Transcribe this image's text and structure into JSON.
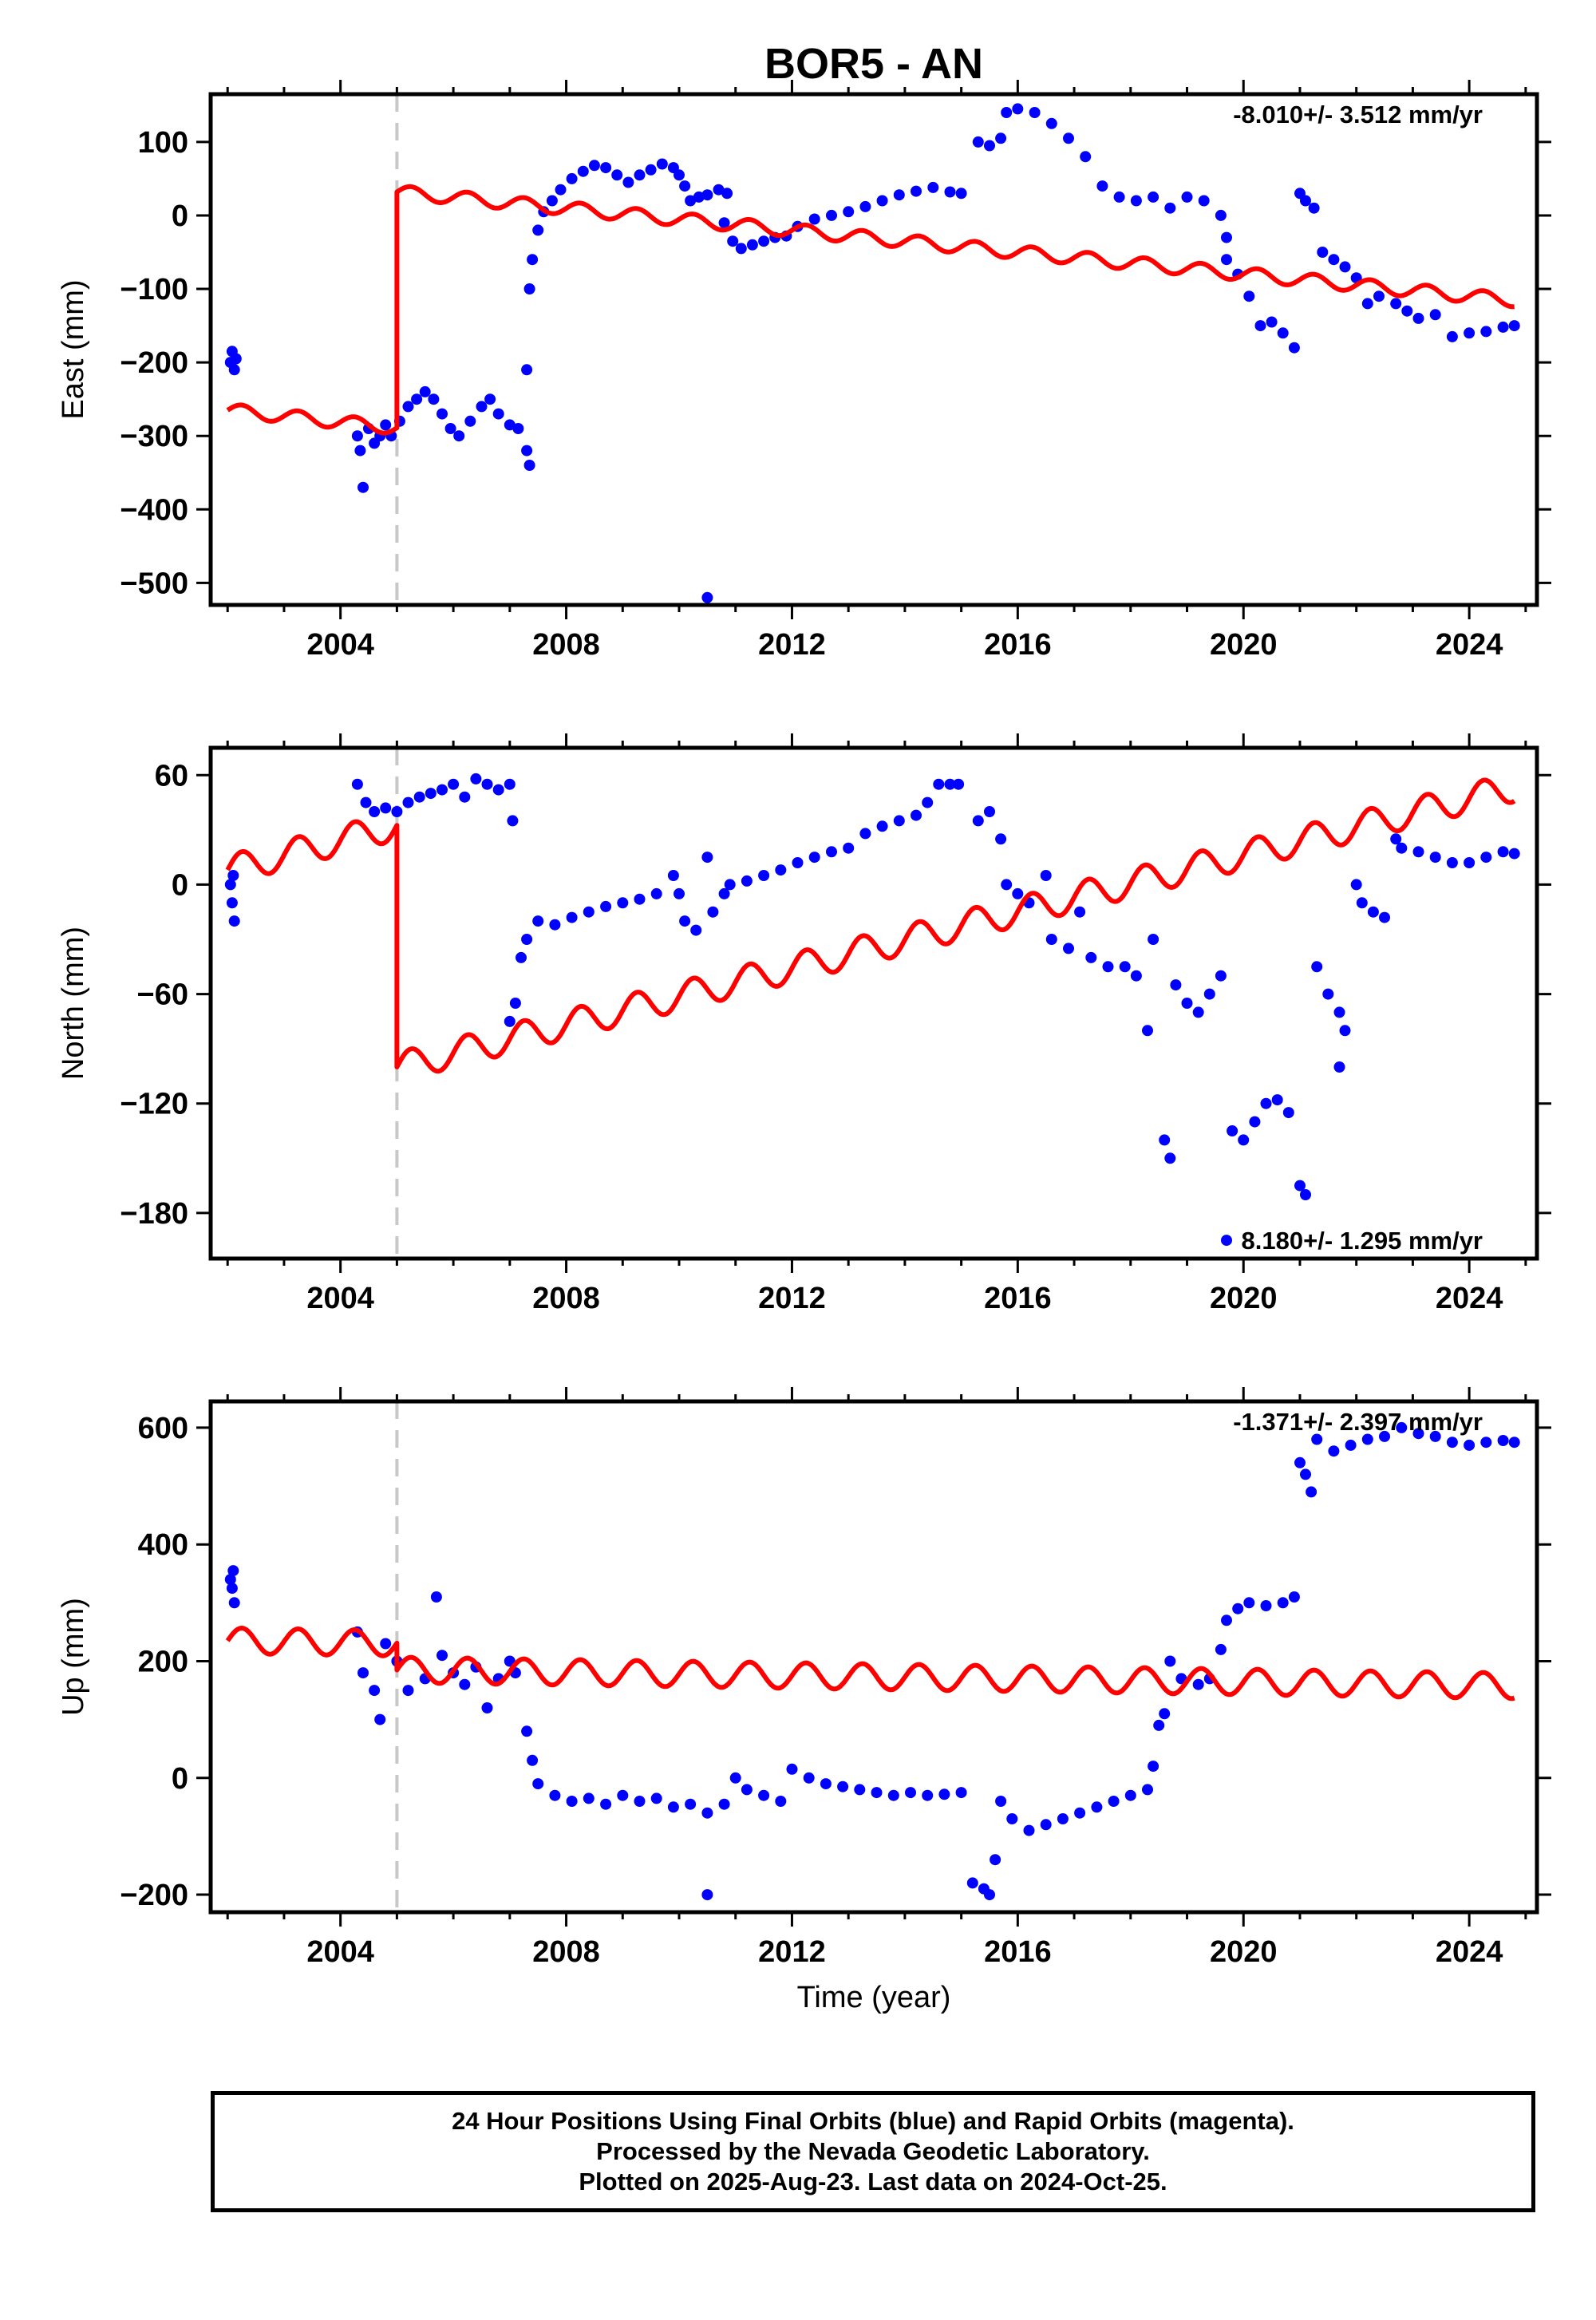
{
  "title": "BOR5 - AN",
  "x_axis_label": "Time (year)",
  "colors": {
    "final": "#0000ff",
    "model": "#ff0000",
    "break": "#c8c8c8",
    "frame": "#000000"
  },
  "chart_data": [
    {
      "type": "scatter",
      "panel": "east",
      "ylabel": "East (mm)",
      "xlim": [
        2001.7,
        2025.2
      ],
      "ylim": [
        -530,
        165
      ],
      "yticks": [
        -500,
        -400,
        -300,
        -200,
        -100,
        0,
        100
      ],
      "xticks": [
        2004,
        2008,
        2012,
        2016,
        2020,
        2024
      ],
      "grid": false,
      "rate_text": "-8.010+/- 3.512 mm/yr",
      "rate_position": "top-right",
      "break_epoch": 2005.0,
      "model": {
        "pre": {
          "start": 2002.0,
          "end": 2005.0,
          "y0": -265,
          "slope": -8.0,
          "amp": 9
        },
        "post": {
          "start": 2005.0,
          "end": 2024.8,
          "y0": 32,
          "slope": -7.45,
          "amp": 9
        }
      },
      "points": [
        [
          2002.05,
          -200
        ],
        [
          2002.08,
          -185
        ],
        [
          2002.12,
          -210
        ],
        [
          2002.15,
          -195
        ],
        [
          2004.3,
          -300
        ],
        [
          2004.35,
          -320
        ],
        [
          2004.4,
          -370
        ],
        [
          2004.5,
          -290
        ],
        [
          2004.6,
          -310
        ],
        [
          2004.7,
          -300
        ],
        [
          2004.8,
          -285
        ],
        [
          2004.9,
          -300
        ],
        [
          2005.05,
          -280
        ],
        [
          2005.2,
          -260
        ],
        [
          2005.35,
          -250
        ],
        [
          2005.5,
          -240
        ],
        [
          2005.65,
          -250
        ],
        [
          2005.8,
          -270
        ],
        [
          2005.95,
          -290
        ],
        [
          2006.1,
          -300
        ],
        [
          2006.3,
          -280
        ],
        [
          2006.5,
          -260
        ],
        [
          2006.65,
          -250
        ],
        [
          2006.8,
          -270
        ],
        [
          2007.0,
          -285
        ],
        [
          2007.15,
          -290
        ],
        [
          2007.3,
          -320
        ],
        [
          2007.35,
          -340
        ],
        [
          2007.3,
          -210
        ],
        [
          2007.35,
          -100
        ],
        [
          2007.4,
          -60
        ],
        [
          2007.5,
          -20
        ],
        [
          2007.6,
          5
        ],
        [
          2007.75,
          20
        ],
        [
          2007.9,
          35
        ],
        [
          2008.1,
          50
        ],
        [
          2008.3,
          60
        ],
        [
          2008.5,
          68
        ],
        [
          2008.7,
          65
        ],
        [
          2008.9,
          55
        ],
        [
          2009.1,
          45
        ],
        [
          2009.3,
          55
        ],
        [
          2009.5,
          62
        ],
        [
          2009.7,
          70
        ],
        [
          2009.9,
          65
        ],
        [
          2010.0,
          55
        ],
        [
          2010.1,
          40
        ],
        [
          2010.2,
          20
        ],
        [
          2010.35,
          25
        ],
        [
          2010.5,
          28
        ],
        [
          2010.7,
          35
        ],
        [
          2010.85,
          30
        ],
        [
          2010.5,
          -520
        ],
        [
          2010.8,
          -10
        ],
        [
          2010.95,
          -35
        ],
        [
          2011.1,
          -45
        ],
        [
          2011.3,
          -40
        ],
        [
          2011.5,
          -35
        ],
        [
          2011.7,
          -30
        ],
        [
          2011.9,
          -28
        ],
        [
          2012.1,
          -15
        ],
        [
          2012.4,
          -5
        ],
        [
          2012.7,
          0
        ],
        [
          2013.0,
          5
        ],
        [
          2013.3,
          12
        ],
        [
          2013.6,
          20
        ],
        [
          2013.9,
          28
        ],
        [
          2014.2,
          33
        ],
        [
          2014.5,
          38
        ],
        [
          2014.8,
          32
        ],
        [
          2015.0,
          30
        ],
        [
          2015.3,
          100
        ],
        [
          2015.5,
          95
        ],
        [
          2015.7,
          105
        ],
        [
          2015.8,
          140
        ],
        [
          2016.0,
          145
        ],
        [
          2016.3,
          140
        ],
        [
          2016.6,
          125
        ],
        [
          2016.9,
          105
        ],
        [
          2017.2,
          80
        ],
        [
          2017.5,
          40
        ],
        [
          2017.8,
          25
        ],
        [
          2018.1,
          20
        ],
        [
          2018.4,
          25
        ],
        [
          2018.7,
          10
        ],
        [
          2019.0,
          25
        ],
        [
          2019.3,
          20
        ],
        [
          2019.6,
          0
        ],
        [
          2019.7,
          -30
        ],
        [
          2019.7,
          -60
        ],
        [
          2019.9,
          -80
        ],
        [
          2020.1,
          -110
        ],
        [
          2020.3,
          -150
        ],
        [
          2020.5,
          -145
        ],
        [
          2020.7,
          -160
        ],
        [
          2020.9,
          -180
        ],
        [
          2021.0,
          30
        ],
        [
          2021.1,
          20
        ],
        [
          2021.25,
          10
        ],
        [
          2021.4,
          -50
        ],
        [
          2021.6,
          -60
        ],
        [
          2021.8,
          -70
        ],
        [
          2022.0,
          -85
        ],
        [
          2022.2,
          -120
        ],
        [
          2022.4,
          -110
        ],
        [
          2022.7,
          -120
        ],
        [
          2022.9,
          -130
        ],
        [
          2023.1,
          -140
        ],
        [
          2023.4,
          -135
        ],
        [
          2023.7,
          -165
        ],
        [
          2024.0,
          -160
        ],
        [
          2024.3,
          -158
        ],
        [
          2024.6,
          -152
        ],
        [
          2024.8,
          -150
        ]
      ]
    },
    {
      "type": "scatter",
      "panel": "north",
      "ylabel": "North (mm)",
      "xlim": [
        2001.7,
        2025.2
      ],
      "ylim": [
        -205,
        75
      ],
      "yticks": [
        -180,
        -120,
        -60,
        0,
        60
      ],
      "xticks": [
        2004,
        2008,
        2012,
        2016,
        2020,
        2024
      ],
      "grid": false,
      "rate_text": "8.180+/- 1.295 mm/yr",
      "rate_position": "bottom-right",
      "break_epoch": 2005.0,
      "model": {
        "pre": {
          "start": 2002.0,
          "end": 2005.0,
          "y0": 8,
          "slope": 8.18,
          "amp": 8
        },
        "post": {
          "start": 2005.0,
          "end": 2024.8,
          "y0": -100,
          "slope": 7.75,
          "amp": 8
        }
      },
      "points": [
        [
          2002.05,
          0
        ],
        [
          2002.08,
          -10
        ],
        [
          2002.12,
          -20
        ],
        [
          2002.1,
          5
        ],
        [
          2004.3,
          55
        ],
        [
          2004.45,
          45
        ],
        [
          2004.6,
          40
        ],
        [
          2004.8,
          42
        ],
        [
          2005.0,
          40
        ],
        [
          2005.2,
          45
        ],
        [
          2005.4,
          48
        ],
        [
          2005.6,
          50
        ],
        [
          2005.8,
          52
        ],
        [
          2006.0,
          55
        ],
        [
          2006.2,
          48
        ],
        [
          2006.4,
          58
        ],
        [
          2006.6,
          55
        ],
        [
          2006.8,
          52
        ],
        [
          2007.0,
          55
        ],
        [
          2007.05,
          35
        ],
        [
          2007.0,
          -75
        ],
        [
          2007.1,
          -65
        ],
        [
          2007.2,
          -40
        ],
        [
          2007.3,
          -30
        ],
        [
          2007.5,
          -20
        ],
        [
          2007.8,
          -22
        ],
        [
          2008.1,
          -18
        ],
        [
          2008.4,
          -15
        ],
        [
          2008.7,
          -12
        ],
        [
          2009.0,
          -10
        ],
        [
          2009.3,
          -8
        ],
        [
          2009.6,
          -5
        ],
        [
          2009.9,
          5
        ],
        [
          2010.0,
          -5
        ],
        [
          2010.1,
          -20
        ],
        [
          2010.3,
          -25
        ],
        [
          2010.5,
          15
        ],
        [
          2010.6,
          -15
        ],
        [
          2010.8,
          -5
        ],
        [
          2010.9,
          0
        ],
        [
          2011.2,
          2
        ],
        [
          2011.5,
          5
        ],
        [
          2011.8,
          8
        ],
        [
          2012.1,
          12
        ],
        [
          2012.4,
          15
        ],
        [
          2012.7,
          18
        ],
        [
          2013.0,
          20
        ],
        [
          2013.3,
          28
        ],
        [
          2013.6,
          32
        ],
        [
          2013.9,
          35
        ],
        [
          2014.2,
          38
        ],
        [
          2014.4,
          45
        ],
        [
          2014.6,
          55
        ],
        [
          2014.8,
          55
        ],
        [
          2014.95,
          55
        ],
        [
          2015.3,
          35
        ],
        [
          2015.5,
          40
        ],
        [
          2015.7,
          25
        ],
        [
          2015.8,
          0
        ],
        [
          2016.0,
          -5
        ],
        [
          2016.2,
          -10
        ],
        [
          2016.5,
          5
        ],
        [
          2016.6,
          -30
        ],
        [
          2016.9,
          -35
        ],
        [
          2017.1,
          -15
        ],
        [
          2017.3,
          -40
        ],
        [
          2017.6,
          -45
        ],
        [
          2017.9,
          -45
        ],
        [
          2018.1,
          -50
        ],
        [
          2018.3,
          -80
        ],
        [
          2018.4,
          -30
        ],
        [
          2018.6,
          -140
        ],
        [
          2018.7,
          -150
        ],
        [
          2018.8,
          -55
        ],
        [
          2019.0,
          -65
        ],
        [
          2019.2,
          -70
        ],
        [
          2019.4,
          -60
        ],
        [
          2019.6,
          -50
        ],
        [
          2019.7,
          -195
        ],
        [
          2019.8,
          -135
        ],
        [
          2020.0,
          -140
        ],
        [
          2020.2,
          -130
        ],
        [
          2020.4,
          -120
        ],
        [
          2020.6,
          -118
        ],
        [
          2020.8,
          -125
        ],
        [
          2021.0,
          -165
        ],
        [
          2021.1,
          -170
        ],
        [
          2021.3,
          -45
        ],
        [
          2021.5,
          -60
        ],
        [
          2021.7,
          -70
        ],
        [
          2021.8,
          -80
        ],
        [
          2021.7,
          -100
        ],
        [
          2022.0,
          0
        ],
        [
          2022.1,
          -10
        ],
        [
          2022.3,
          -15
        ],
        [
          2022.5,
          -18
        ],
        [
          2022.7,
          25
        ],
        [
          2022.8,
          20
        ],
        [
          2023.1,
          18
        ],
        [
          2023.4,
          15
        ],
        [
          2023.7,
          12
        ],
        [
          2024.0,
          12
        ],
        [
          2024.3,
          15
        ],
        [
          2024.6,
          18
        ],
        [
          2024.8,
          17
        ]
      ]
    },
    {
      "type": "scatter",
      "panel": "up",
      "ylabel": "Up (mm)",
      "xlim": [
        2001.7,
        2025.2
      ],
      "ylim": [
        -230,
        645
      ],
      "yticks": [
        -200,
        0,
        200,
        400,
        600
      ],
      "xticks": [
        2004,
        2008,
        2012,
        2016,
        2020,
        2024
      ],
      "grid": false,
      "rate_text": "-1.371+/- 2.397 mm/yr",
      "rate_position": "top-right",
      "break_epoch": 2005.0,
      "model": {
        "pre": {
          "start": 2002.0,
          "end": 2005.0,
          "y0": 235,
          "slope": -1.37,
          "amp": 22
        },
        "post": {
          "start": 2005.0,
          "end": 2024.8,
          "y0": 185,
          "slope": -1.37,
          "amp": 22
        }
      },
      "points": [
        [
          2002.05,
          340
        ],
        [
          2002.1,
          355
        ],
        [
          2002.12,
          300
        ],
        [
          2002.08,
          325
        ],
        [
          2004.3,
          250
        ],
        [
          2004.4,
          180
        ],
        [
          2004.6,
          150
        ],
        [
          2004.7,
          100
        ],
        [
          2004.8,
          230
        ],
        [
          2005.0,
          200
        ],
        [
          2005.2,
          150
        ],
        [
          2005.5,
          170
        ],
        [
          2005.7,
          310
        ],
        [
          2005.8,
          210
        ],
        [
          2006.0,
          180
        ],
        [
          2006.2,
          160
        ],
        [
          2006.4,
          190
        ],
        [
          2006.6,
          120
        ],
        [
          2006.8,
          170
        ],
        [
          2007.0,
          200
        ],
        [
          2007.1,
          180
        ],
        [
          2007.3,
          80
        ],
        [
          2007.4,
          30
        ],
        [
          2007.5,
          -10
        ],
        [
          2007.8,
          -30
        ],
        [
          2008.1,
          -40
        ],
        [
          2008.4,
          -35
        ],
        [
          2008.7,
          -45
        ],
        [
          2009.0,
          -30
        ],
        [
          2009.3,
          -40
        ],
        [
          2009.6,
          -35
        ],
        [
          2009.9,
          -50
        ],
        [
          2010.2,
          -45
        ],
        [
          2010.5,
          -60
        ],
        [
          2010.5,
          -200
        ],
        [
          2010.8,
          -45
        ],
        [
          2011.0,
          0
        ],
        [
          2011.2,
          -20
        ],
        [
          2011.5,
          -30
        ],
        [
          2011.8,
          -40
        ],
        [
          2012.0,
          15
        ],
        [
          2012.3,
          0
        ],
        [
          2012.6,
          -10
        ],
        [
          2012.9,
          -15
        ],
        [
          2013.2,
          -20
        ],
        [
          2013.5,
          -25
        ],
        [
          2013.8,
          -30
        ],
        [
          2014.1,
          -25
        ],
        [
          2014.4,
          -30
        ],
        [
          2014.7,
          -28
        ],
        [
          2015.0,
          -25
        ],
        [
          2015.2,
          -180
        ],
        [
          2015.4,
          -190
        ],
        [
          2015.5,
          -200
        ],
        [
          2015.6,
          -140
        ],
        [
          2015.7,
          -40
        ],
        [
          2015.9,
          -70
        ],
        [
          2016.2,
          -90
        ],
        [
          2016.5,
          -80
        ],
        [
          2016.8,
          -70
        ],
        [
          2017.1,
          -60
        ],
        [
          2017.4,
          -50
        ],
        [
          2017.7,
          -40
        ],
        [
          2018.0,
          -30
        ],
        [
          2018.3,
          -20
        ],
        [
          2018.4,
          20
        ],
        [
          2018.5,
          90
        ],
        [
          2018.6,
          110
        ],
        [
          2018.7,
          200
        ],
        [
          2018.9,
          170
        ],
        [
          2019.2,
          160
        ],
        [
          2019.4,
          170
        ],
        [
          2019.6,
          220
        ],
        [
          2019.7,
          270
        ],
        [
          2019.9,
          290
        ],
        [
          2020.1,
          300
        ],
        [
          2020.4,
          295
        ],
        [
          2020.7,
          300
        ],
        [
          2020.9,
          310
        ],
        [
          2021.0,
          540
        ],
        [
          2021.1,
          520
        ],
        [
          2021.2,
          490
        ],
        [
          2021.3,
          580
        ],
        [
          2021.6,
          560
        ],
        [
          2021.9,
          570
        ],
        [
          2022.2,
          580
        ],
        [
          2022.5,
          585
        ],
        [
          2022.8,
          600
        ],
        [
          2023.1,
          590
        ],
        [
          2023.4,
          585
        ],
        [
          2023.7,
          575
        ],
        [
          2024.0,
          570
        ],
        [
          2024.3,
          575
        ],
        [
          2024.6,
          578
        ],
        [
          2024.8,
          575
        ]
      ]
    }
  ],
  "footer": {
    "line1": "24 Hour Positions Using Final Orbits (blue) and Rapid Orbits (magenta).",
    "line2": "Processed by the Nevada Geodetic Laboratory.",
    "line3": "Plotted on 2025-Aug-23. Last data on 2024-Oct-25."
  }
}
